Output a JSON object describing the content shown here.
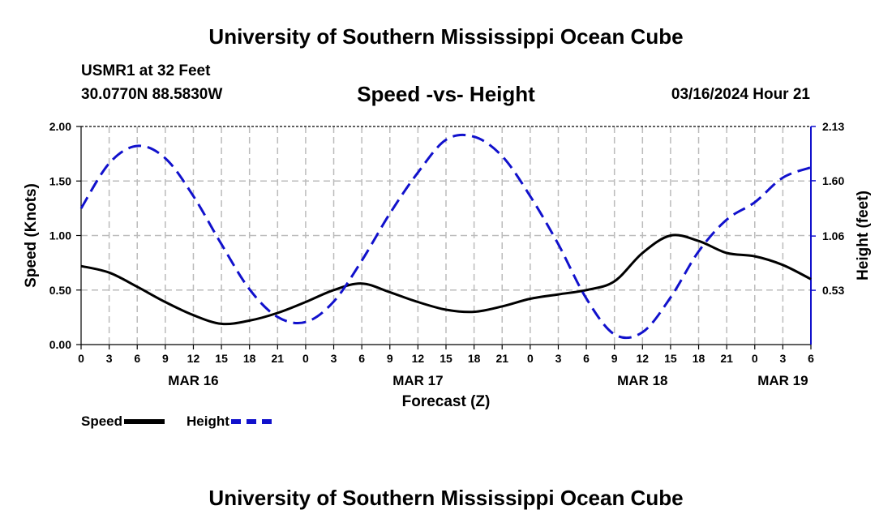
{
  "header": {
    "title": "University of Southern Mississippi Ocean Cube",
    "station": "USMR1 at 32 Feet",
    "coordinates": "30.0770N  88.5830W",
    "subtitle": "Speed -vs- Height",
    "timestamp": "03/16/2024 Hour 21"
  },
  "footer": {
    "title": "University of Southern Mississippi Ocean Cube"
  },
  "legend": {
    "speed_label": "Speed",
    "height_label": "Height"
  },
  "chart_data": {
    "type": "line",
    "title": "Speed -vs- Height",
    "xlabel": "Forecast (Z)",
    "ylabel": "Speed (Knots)",
    "y2label": "Height (feet)",
    "x_unit": "hours since 00Z MAR 16",
    "xlim": [
      0,
      78
    ],
    "ylim": [
      0,
      2.0
    ],
    "y2lim": [
      0,
      2.13
    ],
    "x_ticks": [
      0,
      3,
      6,
      9,
      12,
      15,
      18,
      21,
      24,
      27,
      30,
      33,
      36,
      39,
      42,
      45,
      48,
      51,
      54,
      57,
      60,
      63,
      66,
      69,
      72,
      75,
      78
    ],
    "x_tick_labels": [
      "0",
      "3",
      "6",
      "9",
      "12",
      "15",
      "18",
      "21",
      "0",
      "3",
      "6",
      "9",
      "12",
      "15",
      "18",
      "21",
      "0",
      "3",
      "6",
      "9",
      "12",
      "15",
      "18",
      "21",
      "0",
      "3",
      "6"
    ],
    "day_labels": [
      {
        "x": 12,
        "label": "MAR 16"
      },
      {
        "x": 36,
        "label": "MAR 17"
      },
      {
        "x": 60,
        "label": "MAR 18"
      },
      {
        "x": 75,
        "label": "MAR 19"
      }
    ],
    "y_ticks": [
      0,
      0.5,
      1.0,
      1.5,
      2.0
    ],
    "y_tick_labels": [
      "0.00",
      "0.50",
      "1.00",
      "1.50",
      "2.00"
    ],
    "y2_ticks": [
      0.53,
      1.06,
      1.6,
      2.13
    ],
    "y2_tick_labels": [
      "0.53",
      "1.06",
      "1.60",
      "2.13"
    ],
    "grid": true,
    "legend_position": "bottom-left",
    "series": [
      {
        "name": "Speed",
        "axis": "left",
        "color": "#000000",
        "style": "solid",
        "x": [
          0,
          3,
          6,
          9,
          12,
          15,
          18,
          21,
          24,
          27,
          30,
          33,
          36,
          39,
          42,
          45,
          48,
          51,
          54,
          57,
          60,
          63,
          66,
          69,
          72,
          75,
          78
        ],
        "y": [
          0.72,
          0.66,
          0.53,
          0.39,
          0.27,
          0.19,
          0.22,
          0.29,
          0.39,
          0.5,
          0.56,
          0.48,
          0.39,
          0.32,
          0.3,
          0.35,
          0.42,
          0.46,
          0.5,
          0.58,
          0.84,
          1.0,
          0.95,
          0.84,
          0.81,
          0.73,
          0.6
        ]
      },
      {
        "name": "Height",
        "axis": "right",
        "color": "#1111cc",
        "style": "dashed",
        "x": [
          0,
          3,
          6,
          9,
          12,
          15,
          18,
          21,
          24,
          27,
          30,
          33,
          36,
          39,
          42,
          45,
          48,
          51,
          54,
          57,
          60,
          63,
          66,
          69,
          72,
          75,
          78
        ],
        "y": [
          1.33,
          1.77,
          1.94,
          1.82,
          1.45,
          0.98,
          0.54,
          0.27,
          0.22,
          0.42,
          0.82,
          1.28,
          1.68,
          2.0,
          2.03,
          1.84,
          1.45,
          0.98,
          0.45,
          0.1,
          0.12,
          0.46,
          0.91,
          1.22,
          1.39,
          1.63,
          1.73
        ]
      }
    ]
  }
}
